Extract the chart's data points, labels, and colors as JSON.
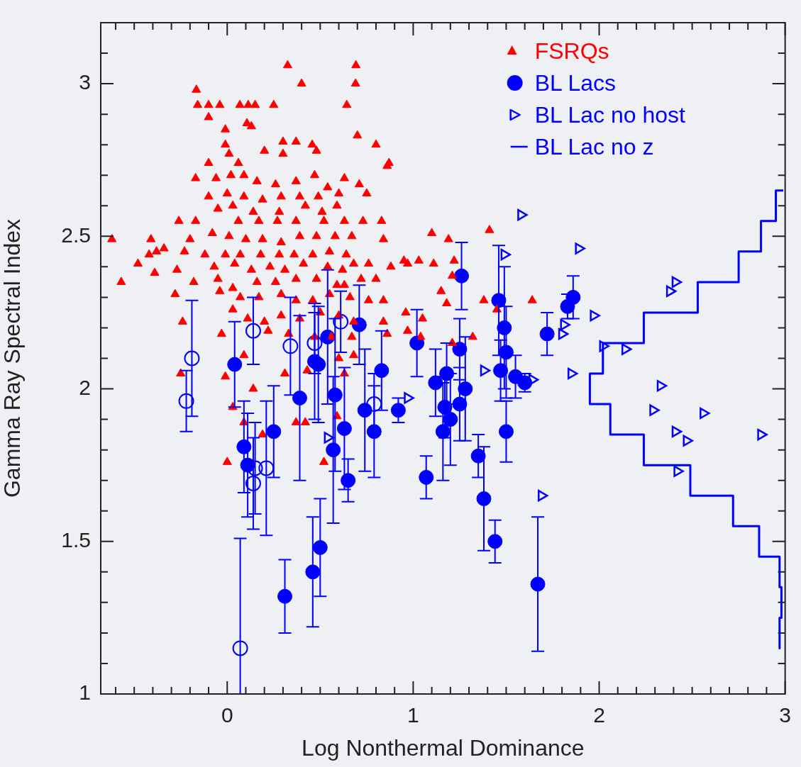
{
  "chart_data": {
    "type": "scatter",
    "xlabel": "Log Nonthermal Dominance",
    "ylabel": "Gamma Ray Spectral Index",
    "xlim": [
      -0.68,
      3
    ],
    "ylim": [
      1,
      3.2
    ],
    "grid": false,
    "legend": "top right",
    "xticks": [
      {
        "value": -0.6,
        "label": null
      },
      {
        "value": -0.5,
        "label": null
      },
      {
        "value": -0.4,
        "label": null
      },
      {
        "value": -0.3,
        "label": null
      },
      {
        "value": -0.2,
        "label": null
      },
      {
        "value": -0.1,
        "label": null
      },
      0,
      {
        "value": 0.1,
        "label": null
      },
      {
        "value": 0.2,
        "label": null
      },
      {
        "value": 0.3,
        "label": null
      },
      {
        "value": 0.4,
        "label": null
      },
      {
        "value": 0.5,
        "label": null
      },
      {
        "value": 0.6,
        "label": null
      },
      {
        "value": 0.7,
        "label": null
      },
      {
        "value": 0.8,
        "label": null
      },
      {
        "value": 0.9,
        "label": null
      },
      1,
      {
        "value": 1.1,
        "label": null
      },
      {
        "value": 1.2,
        "label": null
      },
      {
        "value": 1.3,
        "label": null
      },
      {
        "value": 1.4,
        "label": null
      },
      {
        "value": 1.5,
        "label": null
      },
      {
        "value": 1.6,
        "label": null
      },
      {
        "value": 1.7,
        "label": null
      },
      {
        "value": 1.8,
        "label": null
      },
      {
        "value": 1.9,
        "label": null
      },
      2,
      {
        "value": 2.1,
        "label": null
      },
      {
        "value": 2.2,
        "label": null
      },
      {
        "value": 2.3,
        "label": null
      },
      {
        "value": 2.4,
        "label": null
      },
      {
        "value": 2.5,
        "label": null
      },
      {
        "value": 2.6,
        "label": null
      },
      {
        "value": 2.7,
        "label": null
      },
      {
        "value": 2.8,
        "label": null
      },
      {
        "value": 2.9,
        "label": null
      },
      3
    ],
    "yticks": [
      1,
      {
        "value": 1.1,
        "label": null
      },
      {
        "value": 1.2,
        "label": null
      },
      {
        "value": 1.3,
        "label": null
      },
      {
        "value": 1.4,
        "label": null
      },
      1.5,
      {
        "value": 1.6,
        "label": null
      },
      {
        "value": 1.7,
        "label": null
      },
      {
        "value": 1.8,
        "label": null
      },
      {
        "value": 1.9,
        "label": null
      },
      2,
      {
        "value": 2.1,
        "label": null
      },
      {
        "value": 2.2,
        "label": null
      },
      {
        "value": 2.3,
        "label": null
      },
      {
        "value": 2.4,
        "label": null
      },
      2.5,
      {
        "value": 2.6,
        "label": null
      },
      {
        "value": 2.7,
        "label": null
      },
      {
        "value": 2.8,
        "label": null
      },
      {
        "value": 2.9,
        "label": null
      },
      3,
      {
        "value": 3.1,
        "label": null
      }
    ],
    "series": [
      {
        "name": "FSRQs",
        "color": "#ff0000",
        "marker": "triangle",
        "x": [
          0.325,
          0.692,
          0.4,
          0.69,
          -0.166,
          -0.159,
          -0.1,
          -0.04,
          0.068,
          0.113,
          0.15,
          0.25,
          0.643,
          -0.1,
          0.106,
          0.13,
          -0.01,
          -0.01,
          0.3,
          0.37,
          0.7,
          0.8,
          0.01,
          0.2,
          0.3,
          0.457,
          0.48,
          -0.1,
          0.06,
          -0.17,
          -0.06,
          0.02,
          0.09,
          0.16,
          0.26,
          0.37,
          0.47,
          0.54,
          0.63,
          0.71,
          0.87,
          0.86,
          -0.1,
          0,
          0.09,
          0.19,
          0.29,
          0.39,
          0.49,
          0.6,
          0.75,
          -0.05,
          0.03,
          0.14,
          0.28,
          0.42,
          0.51,
          0.59,
          0.83,
          -0.26,
          -0.17,
          0.06,
          0.17,
          0.27,
          0.37,
          0.52,
          0.63,
          0.73,
          -0.62,
          -0.41,
          -0.34,
          -0.2,
          -0.08,
          0.01,
          0.1,
          0.19,
          0.29,
          0.39,
          0.48,
          0.58,
          0.67,
          0.84,
          1.1,
          1.19,
          1.41,
          -0.42,
          -0.38,
          -0.23,
          -0.12,
          -0.01,
          0.07,
          0.18,
          0.28,
          0.36,
          0.46,
          0.55,
          0.64,
          0.76,
          0.68,
          -0.48,
          -0.39,
          -0.27,
          -0.07,
          0.04,
          0.13,
          0.23,
          0.31,
          0.41,
          0.54,
          0.62,
          0.88,
          0.95,
          0.97,
          1.03,
          1.11,
          1.22,
          -0.57,
          -0.18,
          -0.05,
          0.03,
          0.16,
          0.26,
          0.37,
          0.48,
          0.59,
          0.63,
          0.72,
          0.8,
          -0.28,
          -0.04,
          0.07,
          0.17,
          0.29,
          0.37,
          0.46,
          0.55,
          0.66,
          0.76,
          0.84,
          1.15,
          1.18,
          1.21,
          1.38,
          1.64,
          -0.24,
          0.03,
          0.11,
          0.2,
          0.29,
          0.39,
          0.5,
          0.6,
          0.68,
          0.84,
          0.96,
          1.05,
          1.45,
          -0.03,
          0.22,
          0.33,
          0.47,
          0.56,
          0.67,
          0.86,
          0.97,
          1.04,
          1.21,
          1.32,
          -0.25,
          -0.01,
          0.09,
          0.31,
          0.43,
          0.6,
          0.63,
          0.68,
          0,
          0.09,
          0.19,
          0.37,
          0.42,
          0.52,
          0.03,
          0.14,
          0.59
        ],
        "values": [
          3.06,
          3.06,
          3.0,
          3.0,
          2.98,
          2.93,
          2.93,
          2.93,
          2.93,
          2.93,
          2.93,
          2.93,
          2.93,
          2.89,
          2.87,
          2.86,
          2.85,
          2.8,
          2.81,
          2.81,
          2.83,
          2.8,
          2.77,
          2.78,
          2.77,
          2.8,
          2.78,
          2.74,
          2.74,
          2.69,
          2.69,
          2.7,
          2.7,
          2.68,
          2.67,
          2.68,
          2.7,
          2.66,
          2.69,
          2.67,
          2.74,
          2.73,
          2.63,
          2.64,
          2.63,
          2.62,
          2.63,
          2.63,
          2.63,
          2.64,
          2.64,
          2.59,
          2.6,
          2.58,
          2.58,
          2.6,
          2.58,
          2.6,
          2.55,
          2.55,
          2.55,
          2.55,
          2.55,
          2.55,
          2.55,
          2.55,
          2.55,
          2.55,
          2.49,
          2.49,
          2.46,
          2.49,
          2.51,
          2.5,
          2.49,
          2.49,
          2.48,
          2.5,
          2.5,
          2.5,
          2.5,
          2.49,
          2.51,
          2.49,
          2.52,
          2.44,
          2.45,
          2.45,
          2.44,
          2.44,
          2.44,
          2.44,
          2.44,
          2.44,
          2.44,
          2.45,
          2.44,
          2.41,
          2.41,
          2.41,
          2.38,
          2.39,
          2.4,
          2.41,
          2.39,
          2.4,
          2.39,
          2.41,
          2.4,
          2.39,
          2.4,
          2.42,
          2.41,
          2.42,
          2.41,
          2.42,
          2.35,
          2.35,
          2.36,
          2.33,
          2.35,
          2.35,
          2.36,
          2.36,
          2.34,
          2.34,
          2.36,
          2.36,
          2.31,
          2.32,
          2.3,
          2.3,
          2.31,
          2.29,
          2.29,
          2.31,
          2.3,
          2.29,
          2.29,
          2.32,
          2.28,
          2.37,
          2.29,
          2.29,
          2.22,
          2.26,
          2.23,
          2.22,
          2.24,
          2.23,
          2.25,
          2.24,
          2.22,
          2.22,
          2.25,
          2.23,
          2.26,
          2.18,
          2.19,
          2.18,
          2.17,
          2.17,
          2.17,
          2.18,
          2.19,
          2.17,
          2.15,
          2.17,
          2.05,
          2.04,
          2.11,
          2.05,
          2.06,
          2.1,
          2.05,
          2.11,
          1.76,
          1.89,
          1.85,
          1.89,
          1.89,
          1.76,
          1.94,
          2.0,
          1.91
        ]
      },
      {
        "name": "BL Lacs",
        "color": "#0000ff",
        "marker": "circle",
        "x": [
          0.04,
          0.09,
          0.11,
          0.25,
          0.39,
          0.31,
          0.46,
          0.5,
          0.47,
          0.49,
          0.54,
          0.57,
          0.58,
          0.63,
          0.65,
          0.71,
          0.74,
          0.79,
          0.83,
          0.92,
          1.02,
          1.07,
          1.26,
          1.12,
          1.18,
          1.17,
          1.2,
          1.16,
          1.25,
          1.28,
          1.25,
          1.35,
          1.38,
          1.44,
          1.46,
          1.49,
          1.5,
          1.47,
          1.55,
          1.6,
          1.5,
          1.67,
          1.72,
          1.83,
          1.86
        ],
        "values": [
          2.08,
          1.81,
          1.75,
          1.86,
          1.97,
          1.32,
          1.4,
          1.48,
          2.09,
          2.08,
          2.17,
          1.8,
          1.98,
          1.87,
          1.7,
          2.21,
          1.93,
          1.86,
          2.06,
          1.93,
          2.15,
          1.71,
          2.37,
          2.02,
          2.05,
          1.94,
          1.9,
          1.86,
          2.13,
          2.0,
          1.95,
          1.78,
          1.64,
          1.5,
          2.29,
          2.2,
          2.12,
          2.06,
          2.04,
          2.02,
          1.86,
          1.36,
          2.18,
          2.27,
          2.3
        ],
        "errors": [
          0.14,
          0.15,
          0.17,
          0.15,
          0.27,
          0.12,
          0.18,
          0.16,
          0.19,
          0.19,
          0.22,
          0.24,
          0.25,
          0.2,
          0.07,
          0.13,
          0.2,
          0.15,
          0.13,
          0.04,
          0.11,
          0.07,
          0.11,
          0.11,
          0.1,
          0.1,
          0.15,
          0.16,
          0.1,
          0.17,
          0.12,
          0.07,
          0.17,
          0.07,
          0.18,
          0.2,
          0.15,
          0.1,
          0.07,
          0.03,
          0.1,
          0.22,
          0.07,
          0.04,
          0.07
        ]
      },
      {
        "name": "BL Lac no host",
        "color": "#0000ff",
        "x": [
          1.58,
          1.49,
          1.89,
          1.97,
          1.81,
          1.8,
          2.02,
          2.14,
          1.85,
          1.38,
          1.64,
          2.41,
          2.38,
          2.33,
          2.29,
          2.56,
          2.41,
          2.47,
          2.87,
          2.42,
          1.69,
          0.97,
          0.54
        ],
        "values": [
          2.57,
          2.44,
          2.46,
          2.24,
          2.21,
          2.18,
          2.14,
          2.13,
          2.05,
          2.06,
          2.03,
          2.35,
          2.32,
          2.01,
          1.93,
          1.92,
          1.86,
          1.83,
          1.85,
          1.73,
          1.65,
          1.97,
          1.84
        ]
      },
      {
        "name": "BL Lac no z",
        "color": "#0000ff",
        "type": "line",
        "x": [
          2.99,
          2.95,
          2.95,
          2.87,
          2.87,
          2.75,
          2.75,
          2.53,
          2.53,
          2.24,
          2.24,
          2.02,
          2.02,
          1.95,
          1.95,
          2.06,
          2.06,
          2.24,
          2.24,
          2.49,
          2.49,
          2.72,
          2.72,
          2.86,
          2.86,
          2.97,
          2.97,
          2.98,
          2.98,
          2.97,
          2.97
        ],
        "values": [
          2.65,
          2.65,
          2.55,
          2.55,
          2.45,
          2.45,
          2.35,
          2.35,
          2.25,
          2.25,
          2.15,
          2.15,
          2.05,
          2.05,
          1.95,
          1.95,
          1.85,
          1.85,
          1.75,
          1.75,
          1.65,
          1.65,
          1.55,
          1.55,
          1.45,
          1.45,
          1.35,
          1.35,
          1.25,
          1.25,
          1.15
        ]
      },
      {
        "color": "#0000ff",
        "marker": "circle",
        "x": [
          -0.22,
          -0.19,
          0.07,
          0.14,
          0.34,
          0.15,
          0.14,
          0.21,
          0.47,
          0.61,
          0.79
        ],
        "values": [
          1.96,
          2.1,
          1.15,
          2.19,
          2.14,
          1.74,
          1.69,
          1.74,
          2.15,
          2.22,
          1.95
        ],
        "errors": [
          0.1,
          0.19,
          [
            1,
            1.51
          ],
          0.11,
          0.16,
          0.15,
          0.15,
          0.22,
          0.1,
          0.1,
          0.1
        ]
      }
    ]
  }
}
